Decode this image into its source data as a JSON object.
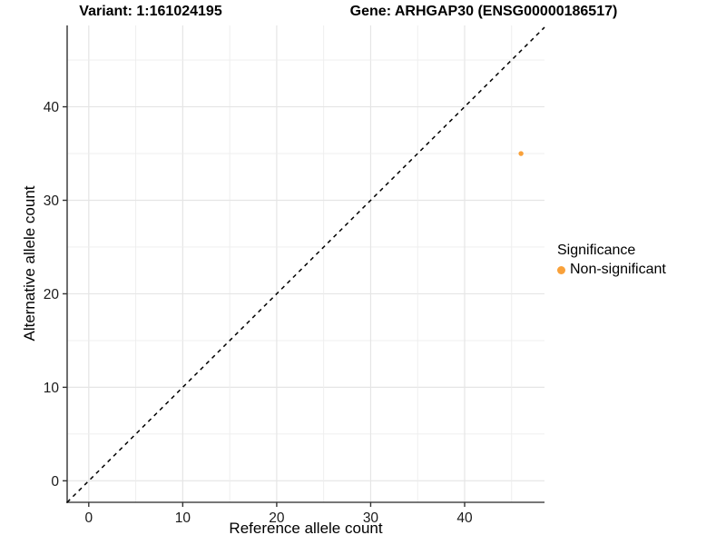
{
  "chart_data": {
    "type": "scatter",
    "title_left": "Variant: 1:161024195",
    "title_right": "Gene: ARHGAP30 (ENSG00000186517)",
    "xlabel": "Reference allele count",
    "ylabel": "Alternative allele count",
    "x_ticks": [
      0,
      10,
      20,
      30,
      40
    ],
    "y_ticks": [
      0,
      10,
      20,
      30,
      40
    ],
    "xlim": [
      -2.3,
      48.5
    ],
    "ylim": [
      -2.3,
      48.7
    ],
    "grid_step": 5,
    "grid_max": 45,
    "grid_on": true,
    "points": [
      {
        "x": 46,
        "y": 35,
        "series": "Non-significant"
      }
    ],
    "identity_line": {
      "slope": 1,
      "intercept": 0,
      "style": "dashed",
      "color": "#000000"
    },
    "legend": {
      "title": "Significance",
      "position": "right",
      "items": [
        {
          "label": "Non-significant",
          "color": "#F9A13A"
        }
      ]
    },
    "colors": {
      "point": "#F9A13A",
      "grid_major": "#E5E5E5",
      "grid_minor": "#EDEDED",
      "axis_line": "#4A4A4A",
      "tick": "#333333",
      "tick_label": "#1A1A1A"
    }
  }
}
